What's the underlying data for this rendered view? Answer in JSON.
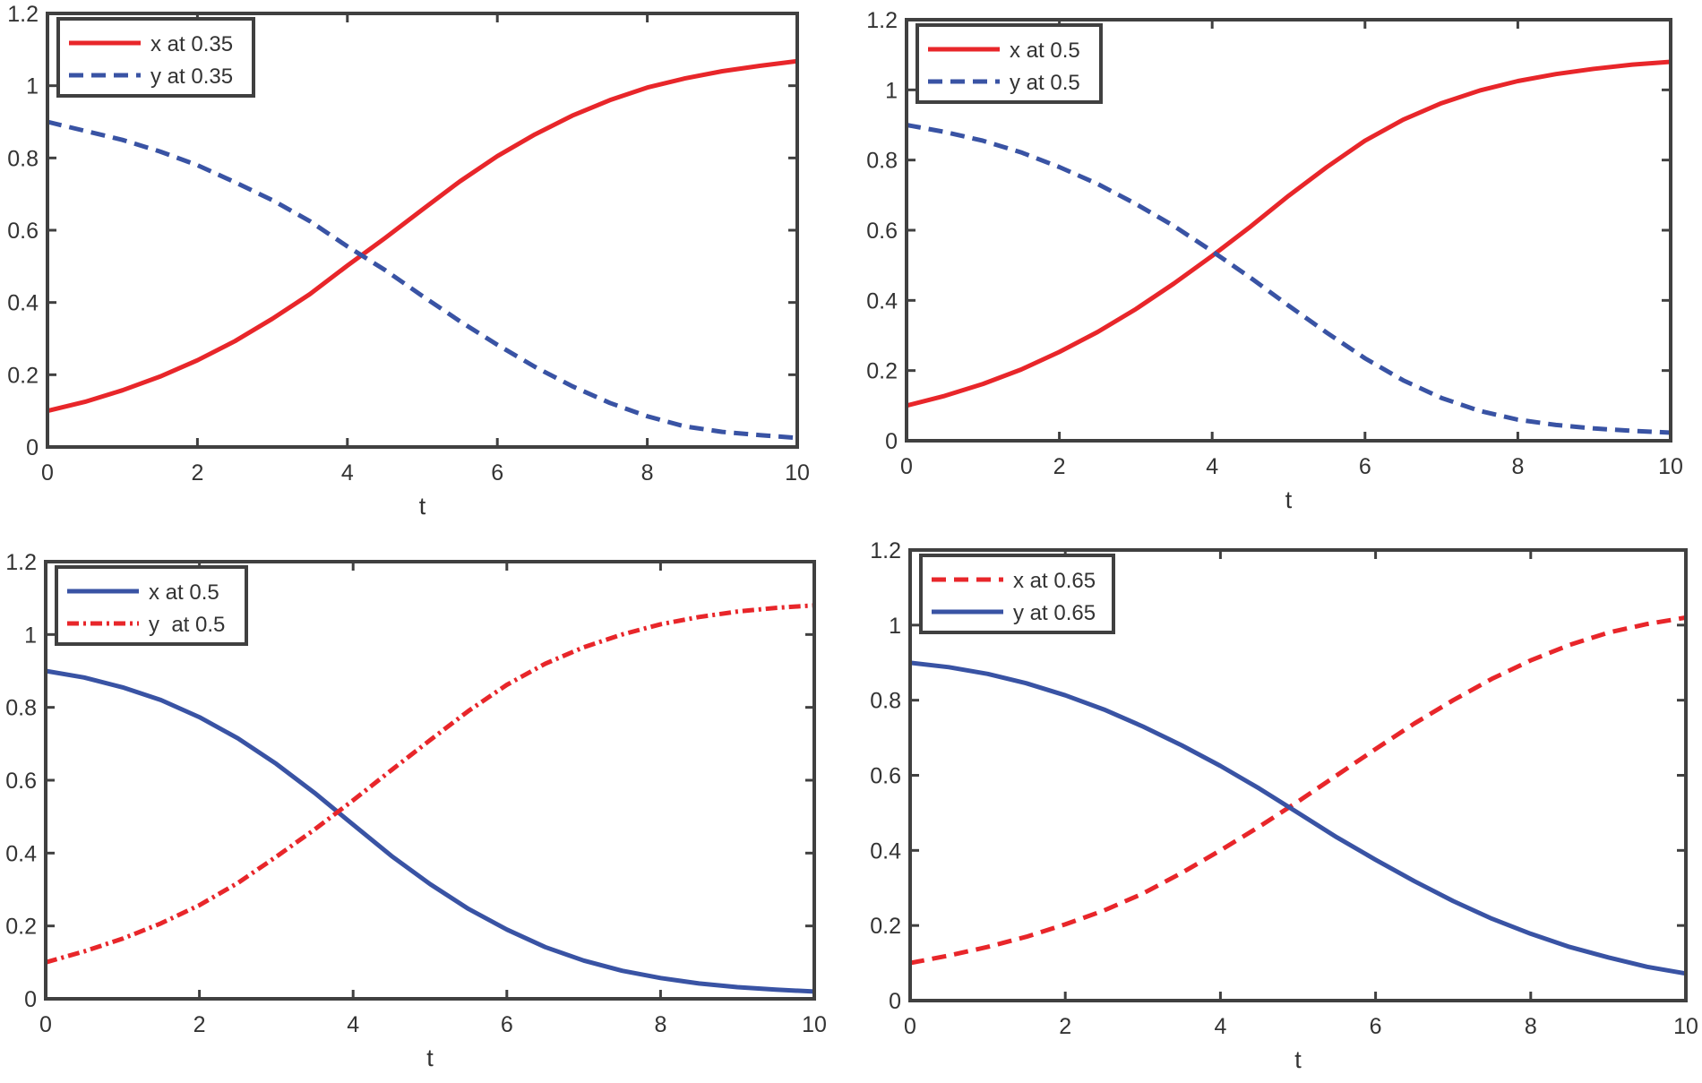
{
  "figure": {
    "panel_count": 4
  },
  "chart_data": [
    {
      "type": "line",
      "panel": "top-left",
      "title": "",
      "xlabel": "t",
      "ylabel": "",
      "xlim": [
        0,
        10
      ],
      "ylim": [
        0,
        1.2
      ],
      "xticks": [
        0,
        2,
        4,
        6,
        8,
        10
      ],
      "xtick_labels": [
        "0",
        "2",
        "4",
        "6",
        "8",
        "10"
      ],
      "yticks": [
        0,
        0.2,
        0.4,
        0.6,
        0.8,
        1,
        1.2
      ],
      "ytick_labels": [
        "0",
        "0.2",
        "0.4",
        "0.6",
        "0.8",
        "1",
        "1.2"
      ],
      "grid": false,
      "legend_position": "top-left",
      "x": [
        0,
        0.5,
        1,
        1.5,
        2,
        2.5,
        3,
        3.5,
        4,
        4.5,
        5,
        5.5,
        6,
        6.5,
        7,
        7.5,
        8,
        8.5,
        9,
        9.5,
        10
      ],
      "series": [
        {
          "name": "x at 0.35",
          "color": "#e8262a",
          "style": "solid",
          "values": [
            0.1,
            0.125,
            0.157,
            0.195,
            0.24,
            0.293,
            0.355,
            0.423,
            0.502,
            0.578,
            0.657,
            0.735,
            0.805,
            0.865,
            0.917,
            0.96,
            0.995,
            1.02,
            1.04,
            1.055,
            1.068
          ]
        },
        {
          "name": "y at 0.35",
          "color": "#3953a4",
          "style": "dashed",
          "values": [
            0.9,
            0.875,
            0.85,
            0.818,
            0.78,
            0.733,
            0.683,
            0.625,
            0.555,
            0.49,
            0.418,
            0.348,
            0.283,
            0.222,
            0.168,
            0.122,
            0.085,
            0.057,
            0.042,
            0.033,
            0.025
          ]
        }
      ]
    },
    {
      "type": "line",
      "panel": "top-right",
      "title": "",
      "xlabel": "t",
      "ylabel": "",
      "xlim": [
        0,
        10
      ],
      "ylim": [
        0,
        1.2
      ],
      "xticks": [
        0,
        2,
        4,
        6,
        8,
        10
      ],
      "xtick_labels": [
        "0",
        "2",
        "4",
        "6",
        "8",
        "10"
      ],
      "yticks": [
        0,
        0.2,
        0.4,
        0.6,
        0.8,
        1,
        1.2
      ],
      "ytick_labels": [
        "0",
        "0.2",
        "0.4",
        "0.6",
        "0.8",
        "1",
        "1.2"
      ],
      "grid": false,
      "legend_position": "top-left",
      "x": [
        0,
        0.5,
        1,
        1.5,
        2,
        2.5,
        3,
        3.5,
        4,
        4.5,
        5,
        5.5,
        6,
        6.5,
        7,
        7.5,
        8,
        8.5,
        9,
        9.5,
        10
      ],
      "series": [
        {
          "name": "x at 0.5",
          "color": "#e8262a",
          "style": "solid",
          "values": [
            0.1,
            0.128,
            0.162,
            0.203,
            0.253,
            0.31,
            0.375,
            0.448,
            0.527,
            0.61,
            0.698,
            0.78,
            0.855,
            0.915,
            0.962,
            0.998,
            1.025,
            1.045,
            1.06,
            1.072,
            1.08
          ]
        },
        {
          "name": "y at 0.5",
          "color": "#3953a4",
          "style": "dashed",
          "values": [
            0.9,
            0.88,
            0.855,
            0.822,
            0.78,
            0.732,
            0.675,
            0.612,
            0.54,
            0.465,
            0.385,
            0.308,
            0.235,
            0.172,
            0.122,
            0.085,
            0.06,
            0.045,
            0.035,
            0.028,
            0.023
          ]
        }
      ]
    },
    {
      "type": "line",
      "panel": "bottom-left",
      "title": "",
      "xlabel": "t",
      "ylabel": "",
      "xlim": [
        0,
        10
      ],
      "ylim": [
        0,
        1.2
      ],
      "xticks": [
        0,
        2,
        4,
        6,
        8,
        10
      ],
      "xtick_labels": [
        "0",
        "2",
        "4",
        "6",
        "8",
        "10"
      ],
      "yticks": [
        0,
        0.2,
        0.4,
        0.6,
        0.8,
        1,
        1.2
      ],
      "ytick_labels": [
        "0",
        "0.2",
        "0.4",
        "0.6",
        "0.8",
        "1",
        "1.2"
      ],
      "grid": false,
      "legend_position": "top-left",
      "x": [
        0,
        0.5,
        1,
        1.5,
        2,
        2.5,
        3,
        3.5,
        4,
        4.5,
        5,
        5.5,
        6,
        6.5,
        7,
        7.5,
        8,
        8.5,
        9,
        9.5,
        10
      ],
      "series": [
        {
          "name": "x at 0.5",
          "color": "#3953a4",
          "style": "solid",
          "values": [
            0.9,
            0.882,
            0.855,
            0.82,
            0.773,
            0.715,
            0.645,
            0.565,
            0.478,
            0.392,
            0.315,
            0.247,
            0.19,
            0.142,
            0.105,
            0.077,
            0.057,
            0.042,
            0.032,
            0.025,
            0.02
          ]
        },
        {
          "name": "y  at 0.5",
          "color": "#e8262a",
          "style": "dashdot",
          "values": [
            0.1,
            0.13,
            0.165,
            0.207,
            0.257,
            0.318,
            0.39,
            0.465,
            0.545,
            0.628,
            0.71,
            0.79,
            0.862,
            0.92,
            0.965,
            1.0,
            1.028,
            1.048,
            1.063,
            1.073,
            1.08
          ]
        }
      ]
    },
    {
      "type": "line",
      "panel": "bottom-right",
      "title": "",
      "xlabel": "t",
      "ylabel": "",
      "xlim": [
        0,
        10
      ],
      "ylim": [
        0,
        1.2
      ],
      "xticks": [
        0,
        2,
        4,
        6,
        8,
        10
      ],
      "xtick_labels": [
        "0",
        "2",
        "4",
        "6",
        "8",
        "10"
      ],
      "yticks": [
        0,
        0.2,
        0.4,
        0.6,
        0.8,
        1,
        1.2
      ],
      "ytick_labels": [
        "0",
        "0.2",
        "0.4",
        "0.6",
        "0.8",
        "1",
        "1.2"
      ],
      "grid": false,
      "legend_position": "top-left",
      "x": [
        0,
        0.5,
        1,
        1.5,
        2,
        2.5,
        3,
        3.5,
        4,
        4.5,
        5,
        5.5,
        6,
        6.5,
        7,
        7.5,
        8,
        8.5,
        9,
        9.5,
        10
      ],
      "series": [
        {
          "name": "x at 0.65",
          "color": "#e8262a",
          "style": "dashed",
          "values": [
            0.1,
            0.12,
            0.143,
            0.17,
            0.203,
            0.24,
            0.285,
            0.34,
            0.4,
            0.463,
            0.53,
            0.6,
            0.67,
            0.738,
            0.8,
            0.857,
            0.906,
            0.947,
            0.98,
            1.003,
            1.02
          ]
        },
        {
          "name": "y at 0.65",
          "color": "#3953a4",
          "style": "solid",
          "values": [
            0.9,
            0.888,
            0.87,
            0.845,
            0.813,
            0.775,
            0.73,
            0.68,
            0.625,
            0.565,
            0.5,
            0.435,
            0.375,
            0.318,
            0.265,
            0.218,
            0.178,
            0.143,
            0.115,
            0.09,
            0.072
          ]
        }
      ]
    }
  ]
}
